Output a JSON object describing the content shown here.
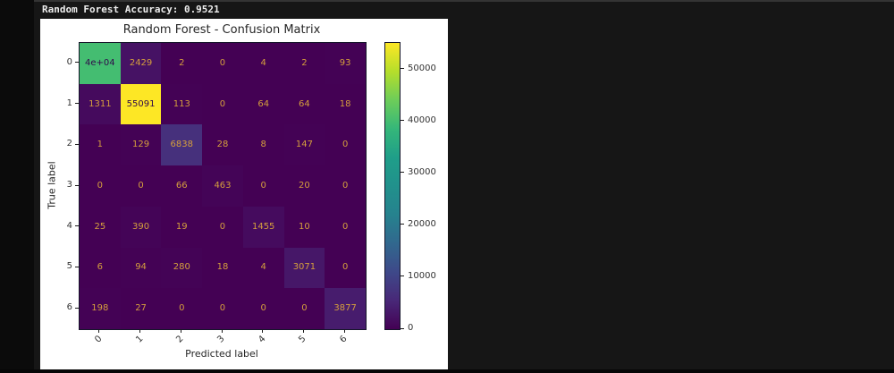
{
  "terminal": {
    "accuracy_line": "Random Forest Accuracy: 0.9521"
  },
  "chart_data": {
    "type": "heatmap",
    "title": "Random Forest - Confusion Matrix",
    "xlabel": "Predicted label",
    "ylabel": "True label",
    "x_labels": [
      "0",
      "1",
      "2",
      "3",
      "4",
      "5",
      "6"
    ],
    "y_labels": [
      "0",
      "1",
      "2",
      "3",
      "4",
      "5",
      "6"
    ],
    "colormap": "viridis",
    "vmin": 0,
    "vmax": 55091,
    "grid": false,
    "legend_position": "right",
    "values": [
      [
        40000,
        2429,
        2,
        0,
        4,
        2,
        93
      ],
      [
        1311,
        55091,
        113,
        0,
        64,
        64,
        18
      ],
      [
        1,
        129,
        6838,
        28,
        8,
        147,
        0
      ],
      [
        0,
        0,
        66,
        463,
        0,
        20,
        0
      ],
      [
        25,
        390,
        19,
        0,
        1455,
        10,
        0
      ],
      [
        6,
        94,
        280,
        18,
        4,
        3071,
        0
      ],
      [
        198,
        27,
        0,
        0,
        0,
        0,
        3877
      ]
    ],
    "cell_labels": [
      [
        "4e+04",
        "2429",
        "2",
        "0",
        "4",
        "2",
        "93"
      ],
      [
        "1311",
        "55091",
        "113",
        "0",
        "64",
        "64",
        "18"
      ],
      [
        "1",
        "129",
        "6838",
        "28",
        "8",
        "147",
        "0"
      ],
      [
        "0",
        "0",
        "66",
        "463",
        "0",
        "20",
        "0"
      ],
      [
        "25",
        "390",
        "19",
        "0",
        "1455",
        "10",
        "0"
      ],
      [
        "6",
        "94",
        "280",
        "18",
        "4",
        "3071",
        "0"
      ],
      [
        "198",
        "27",
        "0",
        "0",
        "0",
        "0",
        "3877"
      ]
    ],
    "colorbar_ticks": [
      0,
      10000,
      20000,
      30000,
      40000,
      50000
    ]
  },
  "colors": {
    "annotation_light": "#d59f3d",
    "annotation_dark": "#30094a",
    "figure_bg": "#ffffff",
    "terminal_bg": "#161616",
    "terminal_text": "#ededed"
  }
}
